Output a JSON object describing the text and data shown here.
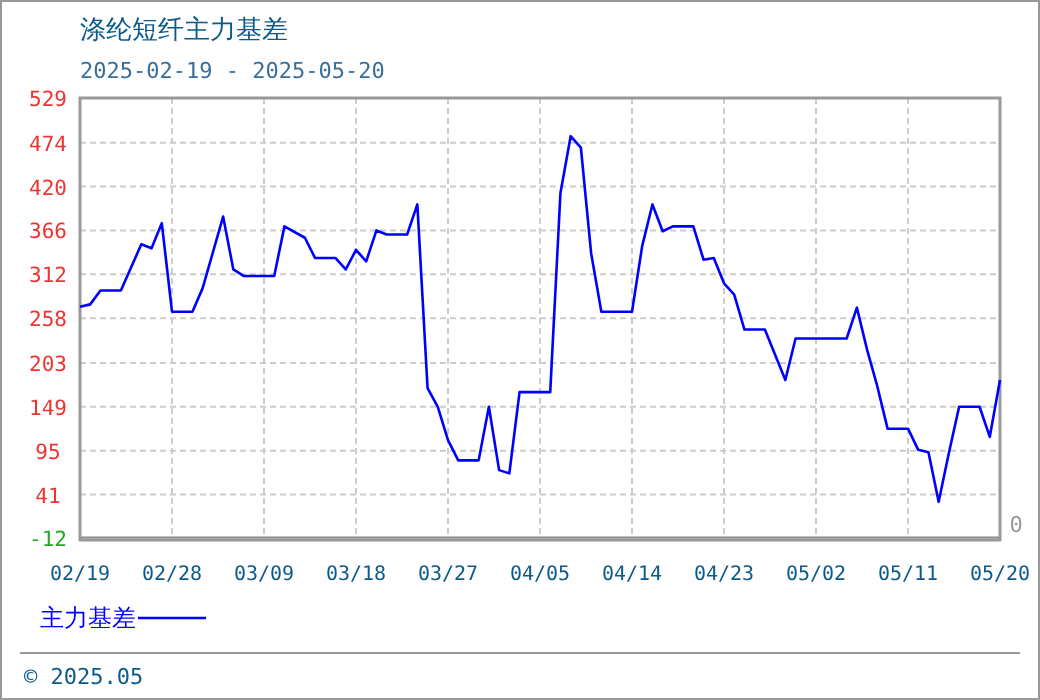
{
  "chart_data": {
    "type": "line",
    "title": "涤纶短纤主力基差",
    "subtitle": "2025-02-19 - 2025-05-20",
    "x": [
      "2025-02-19",
      "2025-02-20",
      "2025-02-21",
      "2025-02-23",
      "2025-02-25",
      "2025-02-26",
      "2025-02-27",
      "2025-02-28",
      "2025-03-02",
      "2025-03-03",
      "2025-03-05",
      "2025-03-06",
      "2025-03-07",
      "2025-03-10",
      "2025-03-11",
      "2025-03-13",
      "2025-03-14",
      "2025-03-16",
      "2025-03-17",
      "2025-03-18",
      "2025-03-19",
      "2025-03-20",
      "2025-03-21",
      "2025-03-23",
      "2025-03-24",
      "2025-03-25",
      "2025-03-26",
      "2025-03-27",
      "2025-03-28",
      "2025-03-30",
      "2025-03-31",
      "2025-04-01",
      "2025-04-02",
      "2025-04-03",
      "2025-04-06",
      "2025-04-07",
      "2025-04-08",
      "2025-04-09",
      "2025-04-10",
      "2025-04-11",
      "2025-04-14",
      "2025-04-15",
      "2025-04-16",
      "2025-04-17",
      "2025-04-18",
      "2025-04-20",
      "2025-04-21",
      "2025-04-22",
      "2025-04-23",
      "2025-04-24",
      "2025-04-25",
      "2025-04-27",
      "2025-04-29",
      "2025-04-30",
      "2025-05-05",
      "2025-05-06",
      "2025-05-07",
      "2025-05-08",
      "2025-05-09",
      "2025-05-11",
      "2025-05-12",
      "2025-05-13",
      "2025-05-14",
      "2025-05-15",
      "2025-05-16",
      "2025-05-18",
      "2025-05-19",
      "2025-05-20"
    ],
    "series": [
      {
        "name": "主力基差",
        "color": "#0000ff",
        "values": [
          272,
          275,
          292,
          292,
          349,
          344,
          375,
          266,
          266,
          295,
          383,
          318,
          310,
          310,
          371,
          357,
          332,
          332,
          318,
          342,
          328,
          366,
          361,
          361,
          398,
          172,
          149,
          108,
          83,
          83,
          149,
          71,
          67,
          167,
          167,
          412,
          482,
          468,
          338,
          266,
          266,
          347,
          398,
          365,
          371,
          371,
          330,
          332,
          301,
          287,
          244,
          244,
          182,
          233,
          233,
          271,
          219,
          174,
          122,
          122,
          96,
          93,
          32,
          92,
          149,
          149,
          112,
          182
        ]
      }
    ],
    "xlim": [
      "2025-02-19",
      "2025-05-20"
    ],
    "xticks": [
      {
        "value": "2025-02-19",
        "label": "02/19"
      },
      {
        "value": "2025-02-28",
        "label": "02/28"
      },
      {
        "value": "2025-03-09",
        "label": "03/09"
      },
      {
        "value": "2025-03-18",
        "label": "03/18"
      },
      {
        "value": "2025-03-27",
        "label": "03/27"
      },
      {
        "value": "2025-04-05",
        "label": "04/05"
      },
      {
        "value": "2025-04-14",
        "label": "04/14"
      },
      {
        "value": "2025-04-23",
        "label": "04/23"
      },
      {
        "value": "2025-05-02",
        "label": "05/02"
      },
      {
        "value": "2025-05-11",
        "label": "05/11"
      },
      {
        "value": "2025-05-20",
        "label": "05/20"
      }
    ],
    "ylim": [
      -15,
      529
    ],
    "yticks": [
      -12,
      41,
      95,
      149,
      203,
      258,
      312,
      366,
      420,
      474,
      529
    ],
    "grid": true,
    "legend": "bottom left",
    "marker": "none",
    "line_style": "solid",
    "annotations": [
      "0",
      "© 2025.05"
    ]
  }
}
